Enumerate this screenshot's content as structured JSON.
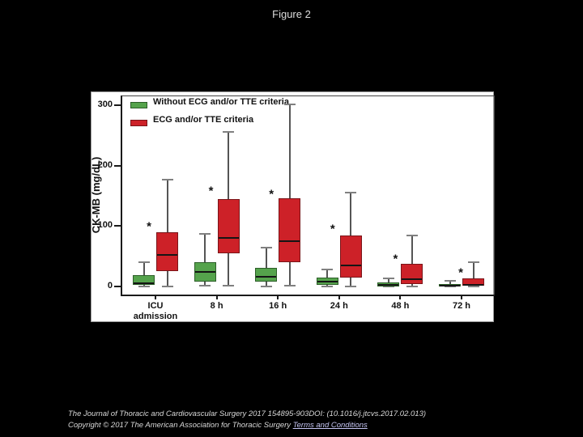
{
  "page": {
    "title": "Figure 2",
    "background": "#000000"
  },
  "chart_data": {
    "type": "boxplot",
    "title": "Figure 2",
    "ylabel": "CK-MB (mg/dL)",
    "ylim": [
      0,
      320
    ],
    "yticks": [
      0,
      100,
      200,
      300
    ],
    "grid": false,
    "legend_position": "top-left-inside",
    "categories": [
      "ICU admission",
      "8 h",
      "16 h",
      "24 h",
      "48 h",
      "72 h"
    ],
    "series": [
      {
        "name": "Without ECG and/or TTE criteria",
        "color": "#55a34c",
        "border_color": "#2c5e28",
        "boxes": [
          {
            "low": 0,
            "q1": 2,
            "median": 6,
            "q3": 19,
            "high": 40
          },
          {
            "low": 1,
            "q1": 8,
            "median": 24,
            "q3": 40,
            "high": 87
          },
          {
            "low": 0,
            "q1": 8,
            "median": 16,
            "q3": 31,
            "high": 64
          },
          {
            "low": 0,
            "q1": 2,
            "median": 8,
            "q3": 15,
            "high": 28
          },
          {
            "low": 0,
            "q1": 0,
            "median": 3,
            "q3": 7,
            "high": 14
          },
          {
            "low": 0,
            "q1": 0,
            "median": 2,
            "q3": 4,
            "high": 9
          }
        ]
      },
      {
        "name": "ECG and/or TTE criteria",
        "color": "#cd2128",
        "border_color": "#7a1519",
        "boxes": [
          {
            "low": 0,
            "q1": 25,
            "median": 52,
            "q3": 90,
            "high": 177
          },
          {
            "low": 1,
            "q1": 55,
            "median": 80,
            "q3": 145,
            "high": 256
          },
          {
            "low": 1,
            "q1": 40,
            "median": 75,
            "q3": 146,
            "high": 301
          },
          {
            "low": 0,
            "q1": 15,
            "median": 35,
            "q3": 84,
            "high": 155
          },
          {
            "low": 0,
            "q1": 4,
            "median": 12,
            "q3": 37,
            "high": 85
          },
          {
            "low": 0,
            "q1": 1,
            "median": 3,
            "q3": 14,
            "high": 40
          }
        ]
      }
    ],
    "annotations": [
      {
        "category": "ICU admission",
        "symbol": "*",
        "y": 103,
        "dx": -8
      },
      {
        "category": "8 h",
        "symbol": "*",
        "y": 162,
        "dx": -7
      },
      {
        "category": "16 h",
        "symbol": "*",
        "y": 157,
        "dx": -8
      },
      {
        "category": "24 h",
        "symbol": "*",
        "y": 99,
        "dx": -8
      },
      {
        "category": "48 h",
        "symbol": "*",
        "y": 49,
        "dx": -6
      },
      {
        "category": "72 h",
        "symbol": "*",
        "y": 27,
        "dx": -1
      }
    ]
  },
  "citation": {
    "line1": "The Journal of Thoracic and Cardiovascular Surgery 2017 154895-903DOI: (10.1016/j.jtcvs.2017.02.013)",
    "copyright": "Copyright © 2017 The American Association for Thoracic Surgery ",
    "link_label": "Terms and Conditions"
  }
}
